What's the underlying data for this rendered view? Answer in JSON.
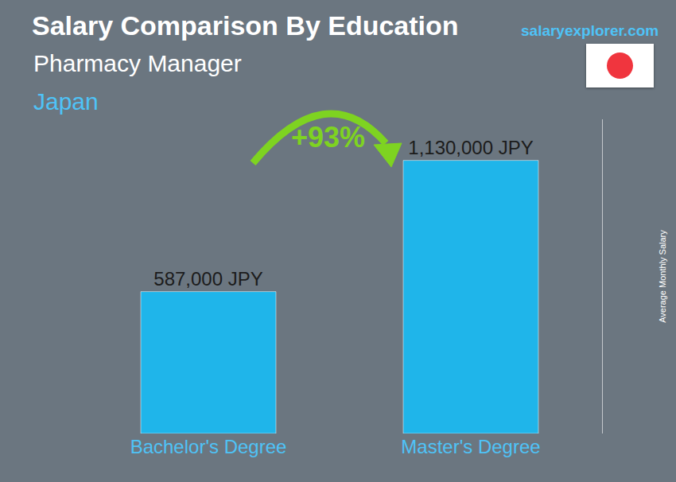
{
  "chart_data": {
    "type": "bar",
    "title": "Salary Comparison By Education",
    "subtitle": "Pharmacy Manager",
    "annotations": [
      "Japan",
      "salaryexplorer.com",
      "+93%"
    ],
    "y_label": "Average Monthly Salary",
    "categories": [
      "Bachelor's Degree",
      "Master's Degree"
    ],
    "values": [
      587000,
      1130000
    ],
    "value_labels": [
      "587,000 JPY",
      "1,130,000 JPY"
    ],
    "color": "#1fb5ea",
    "ylim": [
      0,
      1300000
    ],
    "grid": false,
    "data_labels": true,
    "tick_labels": "x"
  }
}
